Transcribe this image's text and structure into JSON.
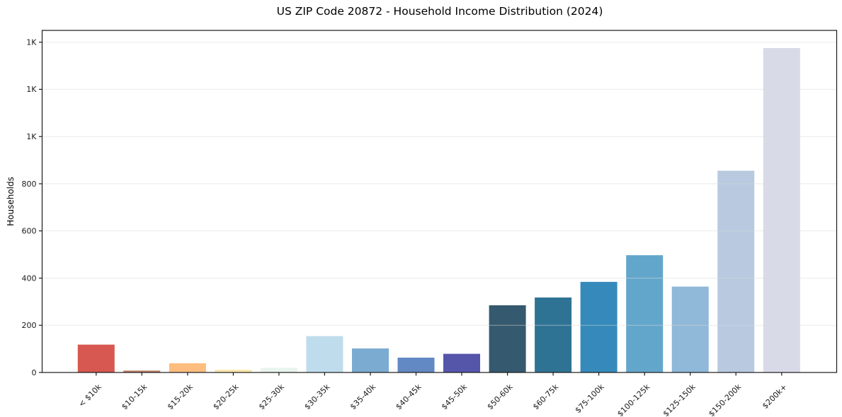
{
  "figure": {
    "background_color": "#ffffff"
  },
  "chart_data": {
    "type": "bar",
    "title": "US ZIP Code 20872 - Household Income Distribution (2024)",
    "xlabel": "",
    "ylabel": "Households",
    "categories": [
      "< $10k",
      "$10-15k",
      "$15-20k",
      "$20-25k",
      "$25-30k",
      "$30-35k",
      "$35-40k",
      "$40-45k",
      "$45-50k",
      "$50-60k",
      "$60-75k",
      "$75-100k",
      "$100-125k",
      "$125-150k",
      "$150-200k",
      "$200k+"
    ],
    "values": [
      118,
      8,
      39,
      12,
      20,
      154,
      102,
      63,
      79,
      285,
      318,
      384,
      497,
      364,
      855,
      1375
    ],
    "bar_colors": [
      "#d65850",
      "#bd8066",
      "#fcbd7e",
      "#fbe7b2",
      "#e9f4ee",
      "#bedcec",
      "#7cabd1",
      "#6289c4",
      "#5556aa",
      "#35596e",
      "#2f7394",
      "#358abb",
      "#63a6cb",
      "#8fb8d9",
      "#b8c9e0",
      "#d8dae8"
    ],
    "ylim": [
      0,
      1450
    ],
    "yticks": {
      "values": [
        0,
        200,
        400,
        600,
        800,
        1000,
        1200,
        1400
      ],
      "labels": [
        "0",
        "200",
        "400",
        "600",
        "800",
        "1K",
        "1K",
        "1K"
      ]
    },
    "xtick_label_rotation_deg": 45,
    "grid": true,
    "grid_axis": "y",
    "legend": null,
    "axis_color": "#1a1a1a",
    "grid_color": "#d9d9d9",
    "tick_text_color": "#1a1a1a"
  }
}
